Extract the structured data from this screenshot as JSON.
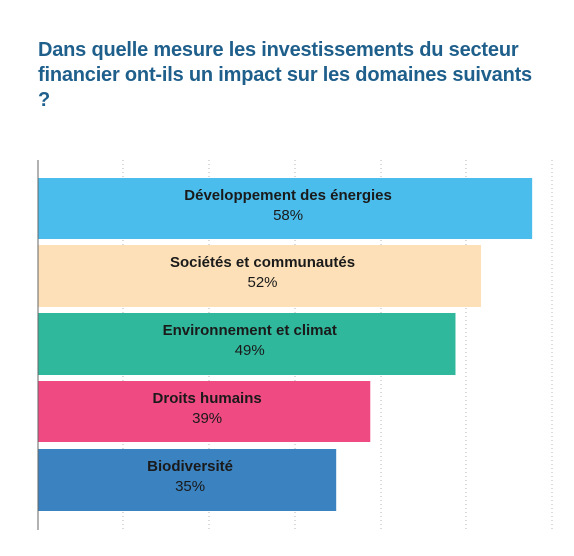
{
  "title": "Dans quelle mesure les investissements du secteur financier ont-ils un impact sur les domaines suivants ?",
  "chart_data": {
    "type": "bar",
    "orientation": "horizontal",
    "title": "Dans quelle mesure les investissements du secteur financier ont-ils un impact sur les domaines suivants ?",
    "categories": [
      "Développement des énergies",
      "Sociétés et communautés",
      "Environnement et climat",
      "Droits humains",
      "Biodiversité"
    ],
    "values": [
      58,
      52,
      49,
      39,
      35
    ],
    "value_labels": [
      "58%",
      "52%",
      "49%",
      "39%",
      "35%"
    ],
    "colors": [
      "#4bbdec",
      "#fde0b8",
      "#2fb89c",
      "#f04a82",
      "#3a82c0"
    ],
    "unit": "%",
    "xlim": [
      0,
      60
    ],
    "grid": true,
    "grid_style": "dotted-vertical",
    "legend": "none",
    "labels_inside_bars": true,
    "xlabel": "",
    "ylabel": ""
  }
}
